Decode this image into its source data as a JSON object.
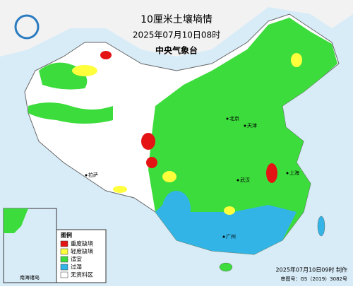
{
  "header": {
    "title": "10厘米土壤墒情",
    "datetime": "2025年07月10日08时",
    "issuer": "中央气象台"
  },
  "legend": {
    "title": "图例",
    "items": [
      {
        "label": "重度缺墒",
        "color": "#e41414"
      },
      {
        "label": "轻度缺墒",
        "color": "#ffff3c"
      },
      {
        "label": "适宜",
        "color": "#3cdc3c"
      },
      {
        "label": "过湿",
        "color": "#32b4e6"
      },
      {
        "label": "无资料区",
        "color": "#ffffff"
      }
    ]
  },
  "inset": {
    "label": "南海诸岛"
  },
  "footer": {
    "made": "2025年07月10日09时 制作",
    "approval": "审图号：GS（2019）3082号"
  },
  "places": [
    "北京",
    "天津",
    "上海",
    "武汉",
    "广州",
    "拉萨"
  ]
}
